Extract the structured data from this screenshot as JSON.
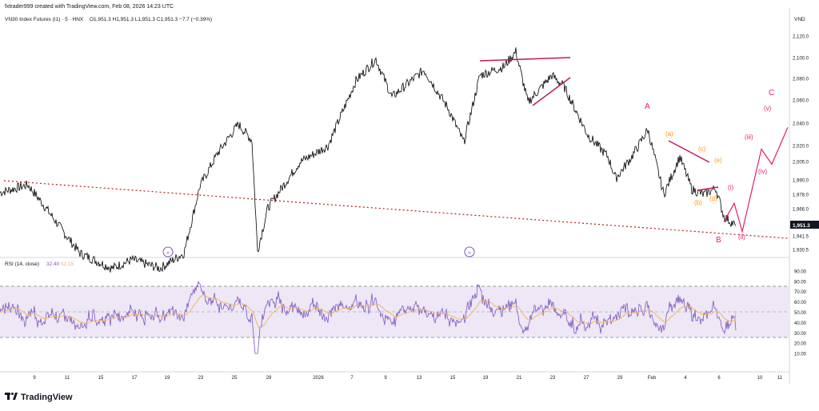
{
  "header": {
    "credit": "fxtrader999 created with TradingView.com, Feb 08, 2026 14:23 UTC",
    "symbol": "VN30 Index Futures (I1) · 5 · HNX",
    "ohlc": "O1,951.3  H1,951.3  L1,951.3  C1,951.3  −7.7 (−0.39%)"
  },
  "price_axis": {
    "currency": "VND",
    "ticks": [
      "2,120.0",
      "2,100.0",
      "2,080.0",
      "2,060.0",
      "2,040.0",
      "2,020.0",
      "2,005.0",
      "1,990.0",
      "1,978.0",
      "1,966.0",
      "1,951.3",
      "1,941.5",
      "1,930.5"
    ],
    "last_price": "1,951.3"
  },
  "rsi_panel": {
    "label": "RSI (14, close)",
    "rsi_value": "32.40",
    "ma_value": "51.15",
    "ticks": [
      "90.00",
      "80.00",
      "70.00",
      "60.00",
      "50.00",
      "40.00",
      "30.00",
      "20.00",
      "10.00"
    ]
  },
  "time_axis": {
    "ticks": [
      "9",
      "11",
      "15",
      "17",
      "19",
      "23",
      "25",
      "29",
      "2026",
      "7",
      "9",
      "13",
      "15",
      "19",
      "21",
      "23",
      "27",
      "29",
      "Feb",
      "4",
      "6",
      "10",
      "11"
    ]
  },
  "wave_labels": {
    "A": "A",
    "B": "B",
    "C": "C",
    "a": "(a)",
    "b": "(b)",
    "c": "(c)",
    "d": "(d)",
    "e": "(e)",
    "i": "(i)",
    "ii": "(ii)",
    "iii": "(iii)",
    "iv": "(iv)",
    "v": "(v)"
  },
  "footer": {
    "brand": "TradingView"
  },
  "colors": {
    "price_line": "#000000",
    "rsi_line": "#7e57c2",
    "rsi_ma": "#f5b34b",
    "rsi_band": "#ede7f6",
    "wave_major": "#e91e63",
    "wave_orange": "#ff9800",
    "trendline": "#c2185b",
    "dotted_trend": "#b71c1c",
    "last_price_bg": "#131722"
  },
  "chart_data": {
    "type": "line",
    "title": "VN30 Index Futures (I1) · 5 · HNX",
    "ylim": [
      1925,
      2130
    ],
    "series": [
      {
        "name": "VN30 Index Futures (I1)",
        "points": [
          [
            0,
            1982
          ],
          [
            35,
            1989
          ],
          [
            55,
            1970
          ],
          [
            80,
            1945
          ],
          [
            100,
            1926
          ],
          [
            140,
            1912
          ],
          [
            165,
            1920
          ],
          [
            200,
            1912
          ],
          [
            230,
            1926
          ],
          [
            250,
            1988
          ],
          [
            272,
            2018
          ],
          [
            298,
            2045
          ],
          [
            315,
            2030
          ],
          [
            322,
            1928
          ],
          [
            335,
            1968
          ],
          [
            375,
            2010
          ],
          [
            410,
            2025
          ],
          [
            445,
            2085
          ],
          [
            470,
            2105
          ],
          [
            490,
            2070
          ],
          [
            530,
            2095
          ],
          [
            560,
            2060
          ],
          [
            580,
            2028
          ],
          [
            600,
            2090
          ],
          [
            630,
            2098
          ],
          [
            645,
            2112
          ],
          [
            660,
            2065
          ],
          [
            690,
            2090
          ],
          [
            705,
            2080
          ],
          [
            735,
            2035
          ],
          [
            760,
            2015
          ],
          [
            770,
            1995
          ],
          [
            790,
            2015
          ],
          [
            810,
            2040
          ],
          [
            830,
            1980
          ],
          [
            850,
            2015
          ],
          [
            865,
            1985
          ],
          [
            880,
            1980
          ],
          [
            895,
            1986
          ],
          [
            905,
            1960
          ],
          [
            920,
            1951.3
          ]
        ]
      }
    ],
    "projection": {
      "name": "wave path",
      "points": [
        [
          905,
          1955
        ],
        [
          918,
          1972
        ],
        [
          928,
          1946
        ],
        [
          952,
          2022
        ],
        [
          965,
          2008
        ],
        [
          985,
          2042
        ]
      ]
    },
    "rsi": {
      "ylim": [
        0,
        100
      ],
      "overbought": 70,
      "oversold": 30,
      "last": 32.4,
      "ma_last": 51.15
    }
  }
}
